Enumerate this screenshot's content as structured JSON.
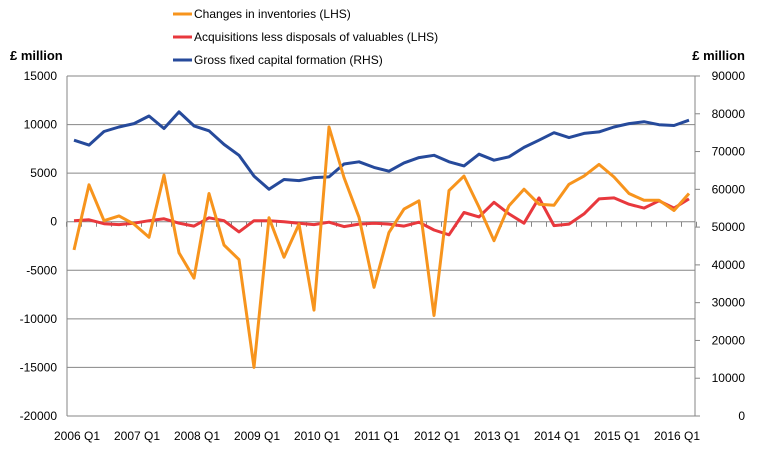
{
  "chart_data": {
    "type": "line",
    "title": "",
    "left_axis": {
      "label": "£ million",
      "ylim": [
        -20000,
        15000
      ],
      "ticks": [
        15000,
        10000,
        5000,
        0,
        -5000,
        -10000,
        -15000,
        -20000
      ]
    },
    "right_axis": {
      "label": "£ million",
      "ylim": [
        0,
        90000
      ],
      "ticks": [
        90000,
        80000,
        70000,
        60000,
        50000,
        40000,
        30000,
        20000,
        10000,
        0
      ]
    },
    "x_tick_labels": [
      "2006 Q1",
      "2007 Q1",
      "2008 Q1",
      "2009 Q1",
      "2010 Q1",
      "2011 Q1",
      "2012 Q1",
      "2013 Q1",
      "2014 Q1",
      "2015 Q1",
      "2016 Q1"
    ],
    "x_start": "2006 Q1",
    "x_end": "2016 Q2",
    "grid": true,
    "legend_position": "top",
    "series": [
      {
        "name": "Changes in inventories (LHS)",
        "axis": "left",
        "color": "#F7941D",
        "values": [
          -2900,
          3800,
          100,
          600,
          -250,
          -1600,
          4800,
          -3200,
          -5800,
          2900,
          -2400,
          -3900,
          -15000,
          400,
          -3650,
          -250,
          -9100,
          9750,
          4550,
          450,
          -6750,
          -1100,
          1300,
          2150,
          -9650,
          3200,
          4700,
          1500,
          -1950,
          1650,
          3350,
          1800,
          1700,
          3850,
          4700,
          5900,
          4600,
          2900,
          2200,
          2200,
          1150,
          2900
        ]
      },
      {
        "name": "Acquisitions less disposals of valuables (LHS)",
        "axis": "left",
        "color": "#E8383D",
        "values": [
          100,
          200,
          -200,
          -300,
          -150,
          100,
          300,
          -150,
          -450,
          400,
          100,
          -1050,
          100,
          100,
          0,
          -150,
          -300,
          -50,
          -500,
          -250,
          -150,
          -250,
          -450,
          -50,
          -850,
          -1350,
          950,
          500,
          2000,
          800,
          -150,
          2450,
          -400,
          -250,
          800,
          2350,
          2450,
          1800,
          1400,
          2150,
          1400,
          2350
        ]
      },
      {
        "name": "Gross fixed capital formation (RHS)",
        "axis": "right",
        "color": "#264A9B",
        "values": [
          73000,
          71700,
          75300,
          76500,
          77400,
          79400,
          76100,
          80500,
          76800,
          75500,
          71900,
          69000,
          63500,
          60000,
          62600,
          62300,
          63100,
          63300,
          66700,
          67300,
          65800,
          64800,
          67000,
          68400,
          69000,
          67300,
          66200,
          69300,
          67700,
          68600,
          71100,
          73000,
          75000,
          73700,
          74800,
          75200,
          76500,
          77400,
          77900,
          77100,
          76900,
          78300
        ]
      }
    ]
  }
}
